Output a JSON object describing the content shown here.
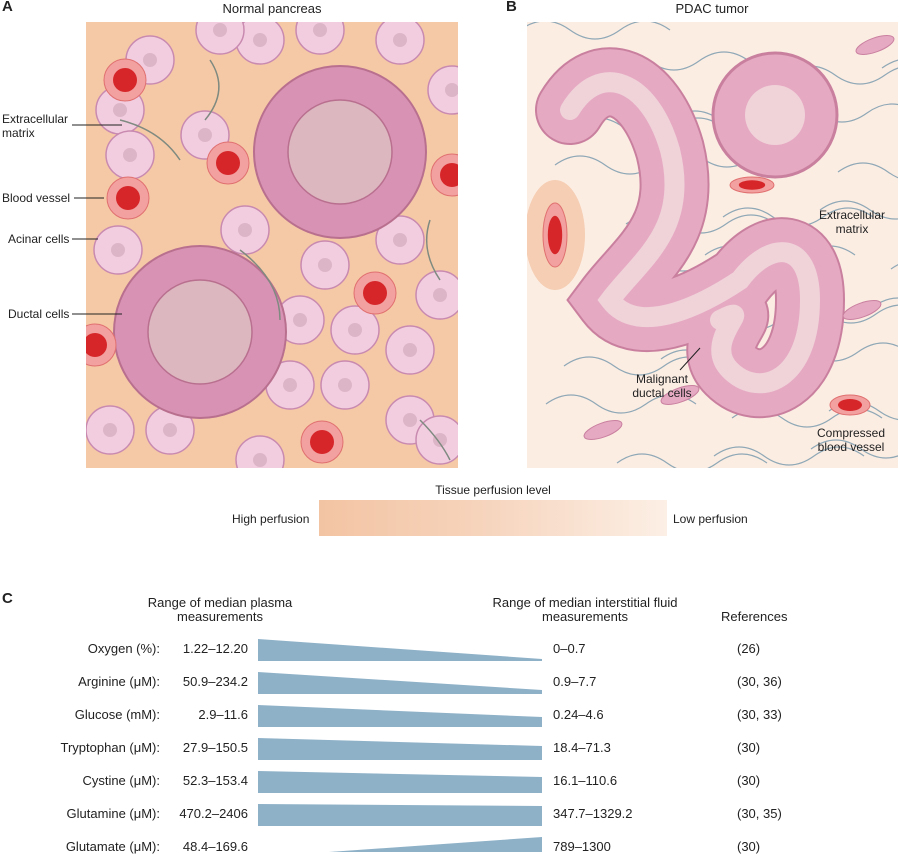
{
  "panel_a": {
    "letter": "A",
    "title": "Normal pancreas",
    "labels": [
      "Extracellular matrix",
      "Blood vessel",
      "Acinar cells",
      "Ductal cells"
    ]
  },
  "panel_b": {
    "letter": "B",
    "title": "PDAC tumor",
    "labels": [
      "Extracellular matrix",
      "Malignant ductal cells",
      "Compressed blood vessel"
    ]
  },
  "perfusion": {
    "title": "Tissue perfusion level",
    "high": "High perfusion",
    "low": "Low perfusion"
  },
  "panel_c": {
    "letter": "C",
    "headers": {
      "plasma": "Range of median plasma measurements",
      "interstitial": "Range of median interstitial fluid measurements",
      "references": "References"
    },
    "rows": [
      [
        "Oxygen (%):",
        "1.22–12.20",
        "0–0.7",
        "(26)"
      ],
      [
        "Arginine (μM):",
        "50.9–234.2",
        "0.9–7.7",
        "(30, 36)"
      ],
      [
        "Glucose (mM):",
        "2.9–11.6",
        "0.24–4.6",
        "(30, 33)"
      ],
      [
        "Tryptophan (μM):",
        "27.9–150.5",
        "18.4–71.3",
        "(30)"
      ],
      [
        "Cystine (μM):",
        "52.3–153.4",
        "16.1–110.6",
        "(30)"
      ],
      [
        "Glutamine (μM):",
        "470.2–2406",
        "347.7–1329.2",
        "(30, 35)"
      ],
      [
        "Glutamate (μM):",
        "48.4–169.6",
        "789–1300",
        "(30)"
      ]
    ]
  }
}
